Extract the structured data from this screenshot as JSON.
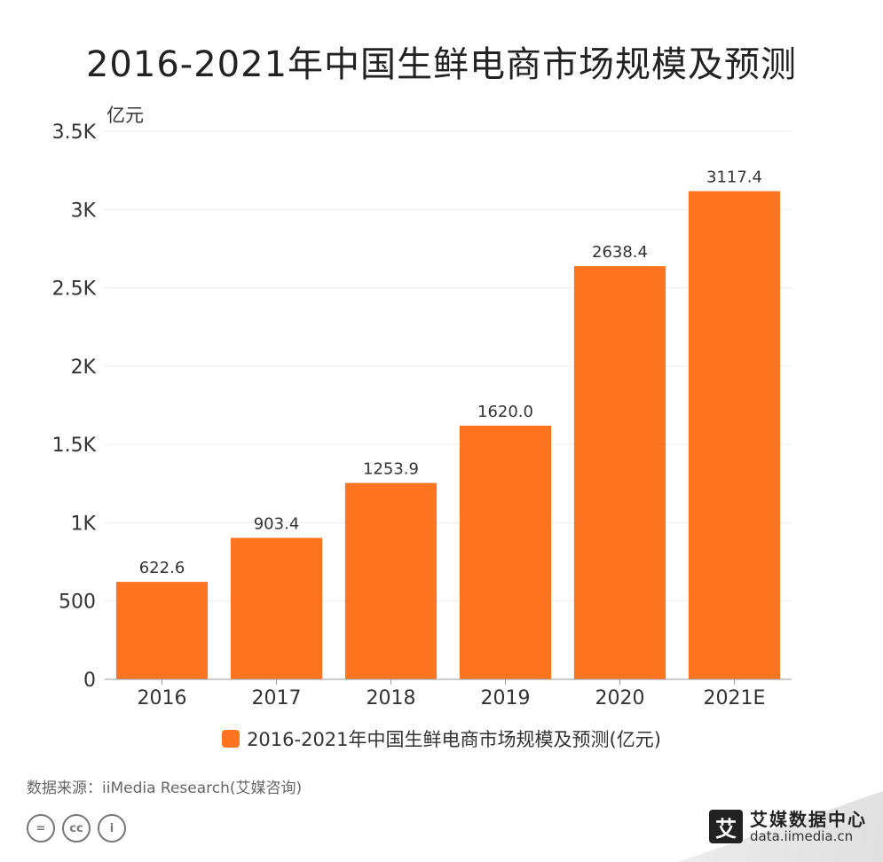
{
  "title": "2016-2021年中国生鲜电商市场规模及预测",
  "source": "数据来源：iiMedia Research(艾媒咨询)",
  "brand": {
    "name": "艾媒数据中心",
    "url": "data.iimedia.cn",
    "logo_char": "艾"
  },
  "cc_icons": [
    "equals-icon",
    "cc-icon",
    "person-icon"
  ],
  "colors": {
    "bar": "#FF7420",
    "grid": "#ececec",
    "axis": "#999999"
  },
  "chart_data": {
    "type": "bar",
    "title": "2016-2021年中国生鲜电商市场规模及预测",
    "ylabel": "亿元",
    "categories": [
      "2016",
      "2017",
      "2018",
      "2019",
      "2020",
      "2021E"
    ],
    "series": [
      {
        "name": "2016-2021年中国生鲜电商市场规模及预测(亿元)",
        "values": [
          622.6,
          903.4,
          1253.9,
          1620.0,
          2638.4,
          3117.4
        ],
        "labels": [
          "622.6",
          "903.4",
          "1253.9",
          "1620.0",
          "2638.4",
          "3117.4"
        ]
      }
    ],
    "ylim": [
      0,
      3500
    ],
    "yticks": [
      0,
      500,
      1000,
      1500,
      2000,
      2500,
      3000,
      3500
    ],
    "ytick_labels": [
      "0",
      "500",
      "1K",
      "1.5K",
      "2K",
      "2.5K",
      "3K",
      "3.5K"
    ],
    "grid": true,
    "legend": "bottom"
  }
}
